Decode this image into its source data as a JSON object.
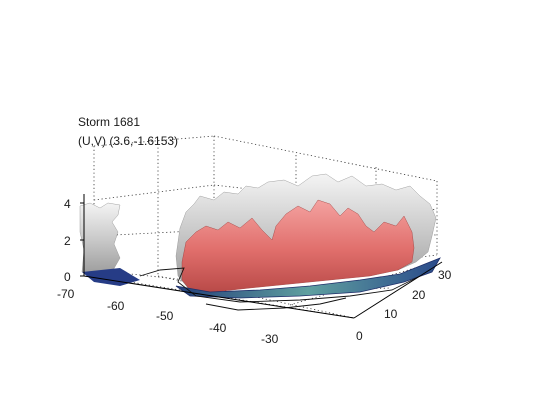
{
  "chart_data": {
    "type": "surface",
    "title": "Storm 1681",
    "subtitle": "(U,V) (3.6,-1.6153)",
    "xlabel": "",
    "ylabel": "",
    "zlabel": "",
    "x_ticks": [
      "-70",
      "-60",
      "-50",
      "-40",
      "-30"
    ],
    "y_ticks": [
      "0",
      "10",
      "20",
      "30"
    ],
    "z_ticks": [
      "0",
      "2",
      "4"
    ],
    "xlim": [
      -72,
      -22
    ],
    "ylim": [
      -3,
      34
    ],
    "zlim": [
      0,
      5
    ],
    "grid": true,
    "legend": "none",
    "colors": {
      "outer_isosurface": "#c8c8c8",
      "inner_isosurface": "#e0706e",
      "base": "#4a7aa8"
    }
  }
}
